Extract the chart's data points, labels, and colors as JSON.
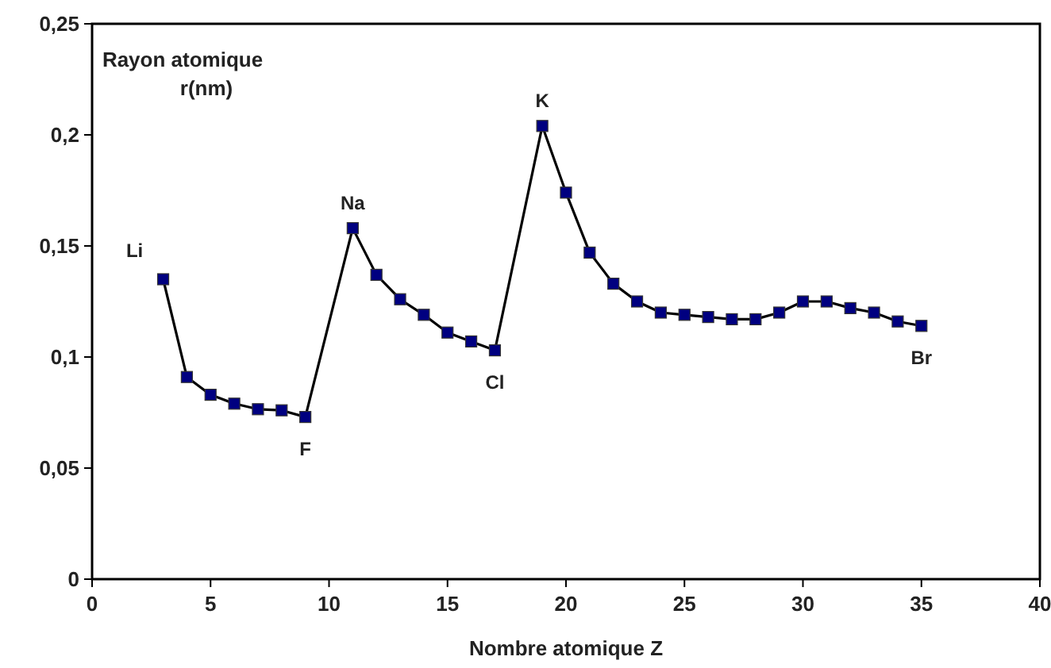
{
  "chart_data": {
    "type": "line",
    "ylabel": "Rayon atomique r(nm)",
    "xlabel": "Nombre atomique Z",
    "series": [
      {
        "color": "#000080",
        "x": [
          3,
          4,
          5,
          6,
          7,
          8,
          9,
          11,
          12,
          13,
          14,
          15,
          16,
          17,
          19,
          20,
          21,
          22,
          23,
          24,
          25,
          26,
          27,
          28,
          29,
          30,
          31,
          32,
          33,
          34,
          35
        ],
        "values": [
          0.135,
          0.091,
          0.083,
          0.079,
          0.0765,
          0.076,
          0.073,
          0.158,
          0.137,
          0.126,
          0.119,
          0.111,
          0.107,
          0.103,
          0.204,
          0.174,
          0.147,
          0.133,
          0.125,
          0.12,
          0.119,
          0.118,
          0.117,
          0.117,
          0.12,
          0.125,
          0.125,
          0.122,
          0.12,
          0.116,
          0.114
        ]
      }
    ],
    "xlim": [
      0,
      40
    ],
    "xticks": [
      0,
      5,
      10,
      15,
      20,
      25,
      30,
      35,
      40
    ],
    "ylim": [
      0,
      0.25
    ],
    "yticks": [
      {
        "value": 0,
        "label": "0"
      },
      {
        "value": 0.05,
        "label": "0,05"
      },
      {
        "value": 0.1,
        "label": "0,1"
      },
      {
        "value": 0.15,
        "label": "0,15"
      },
      {
        "value": 0.2,
        "label": "0,2"
      },
      {
        "value": 0.25,
        "label": "0,25"
      }
    ],
    "marker": "square",
    "line_style": "solid",
    "annotations": [
      {
        "text": "Li",
        "x": 3,
        "y": 0.135
      },
      {
        "text": "F",
        "x": 9,
        "y": 0.073
      },
      {
        "text": "Na",
        "x": 11,
        "y": 0.158
      },
      {
        "text": "Cl",
        "x": 17,
        "y": 0.103
      },
      {
        "text": "K",
        "x": 19,
        "y": 0.204
      },
      {
        "text": "Br",
        "x": 35,
        "y": 0.114
      }
    ]
  }
}
